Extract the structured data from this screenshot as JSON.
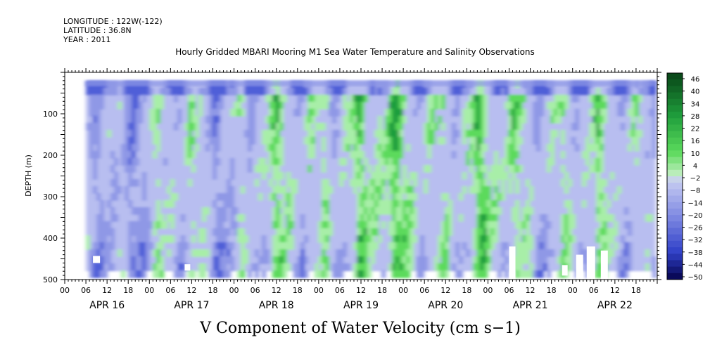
{
  "header": {
    "longitude": "LONGITUDE : 122W(-122)",
    "latitude": "LATITUDE : 36.8N",
    "year": "YEAR : 2011",
    "title": "Hourly Gridded MBARI Mooring M1 Sea Water Temperature and Salinity Observations"
  },
  "chart_data": {
    "type": "heatmap",
    "title": "Hourly Gridded MBARI Mooring M1 Sea Water Temperature and Salinity Observations",
    "xlabel": "V Component of Water Velocity (cm s−1)",
    "ylabel": "DEPTH (m)",
    "x_hour_ticks": [
      "00",
      "06",
      "12",
      "18",
      "00",
      "06",
      "12",
      "18",
      "00",
      "06",
      "12",
      "18",
      "00",
      "06",
      "12",
      "18",
      "00",
      "06",
      "12",
      "18",
      "00",
      "06",
      "12",
      "18",
      "00",
      "06",
      "12",
      "18"
    ],
    "x_day_labels": [
      "APR 16",
      "APR 17",
      "APR 18",
      "APR 19",
      "APR 20",
      "APR 21",
      "APR 22"
    ],
    "y_ticks": [
      "100",
      "200",
      "300",
      "400",
      "500"
    ],
    "y_range": [
      0,
      500
    ],
    "y_inverted": true,
    "x_range_hours": [
      0,
      168
    ],
    "data_start_hour": 6,
    "data_depth_range": [
      20,
      480
    ],
    "colorbar": {
      "labels": [
        "46",
        "40",
        "34",
        "28",
        "22",
        "16",
        "10",
        "4",
        "-2",
        "-8",
        "-14",
        "-20",
        "-26",
        "-32",
        "-38",
        "-44",
        "-50"
      ],
      "min": -50,
      "max": 46
    },
    "field_summary": "Mostly weak negative values (-2 to -14, lavender/blue) with vertical bands of positive values (4 to 22, green), strongest green around APR 19-21 at depths 100-300 m; strongest negative (blue) near the surface.",
    "missing_patches": [
      "APR 21 ~06h 420-480m",
      "APR 22 ~00-12h 420-480m"
    ]
  },
  "colors": {
    "neg_low": "#b8bef0",
    "neg_mid": "#8f98e6",
    "neg_high": "#4f5ed8",
    "pos_low": "#a8eea8",
    "pos_mid": "#5cda5c",
    "pos_high": "#1f9e3c"
  }
}
